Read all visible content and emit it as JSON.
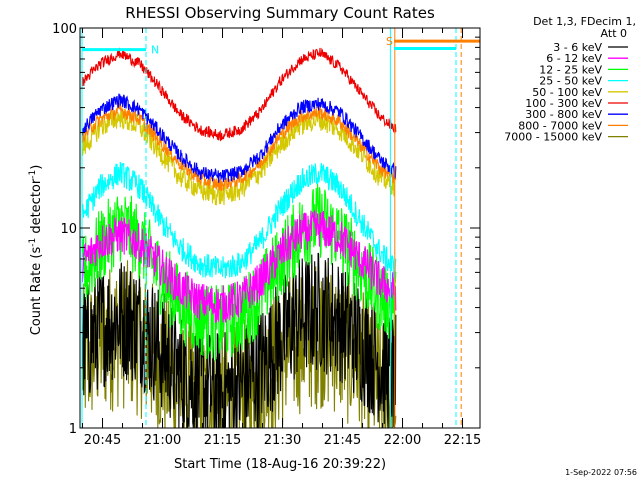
{
  "chart_data": {
    "type": "line",
    "title": "RHESSI Observing Summary Count Rates",
    "xlabel": "Start Time (18-Aug-16 20:39:22)",
    "ylabel_main": "Count Rate (s",
    "ylabel_sup1": "-1",
    "ylabel_mid": " detector",
    "ylabel_sup2": "-1",
    "ylabel_end": ")",
    "y_scale": "log",
    "ylim": [
      1,
      100
    ],
    "xlim_minutes": [
      0,
      100
    ],
    "x_ticks": [
      {
        "minute": 5.63,
        "label": "20:45"
      },
      {
        "minute": 20.63,
        "label": "21:00"
      },
      {
        "minute": 35.63,
        "label": "21:15"
      },
      {
        "minute": 50.63,
        "label": "21:30"
      },
      {
        "minute": 65.63,
        "label": "21:45"
      },
      {
        "minute": 80.63,
        "label": "22:00"
      },
      {
        "minute": 95.63,
        "label": "22:15"
      }
    ],
    "y_ticks": [
      {
        "value": 1,
        "label": "1"
      },
      {
        "value": 10,
        "label": "10"
      },
      {
        "value": 100,
        "label": "100"
      }
    ],
    "legend_header": [
      "Det 1,3, FDecim 1,",
      "Att 0"
    ],
    "legend_position": "right",
    "grid": false,
    "data_end_minute": 79,
    "series": [
      {
        "name": "3 - 6 keV",
        "color": "#000000",
        "x": [
          0,
          5,
          10,
          15,
          20,
          25,
          30,
          35,
          40,
          45,
          50,
          55,
          60,
          65,
          70,
          75,
          79
        ],
        "values": [
          2.4,
          3.2,
          3.6,
          3.3,
          2.5,
          1.9,
          1.6,
          1.5,
          1.6,
          2.0,
          2.8,
          3.6,
          3.9,
          3.5,
          2.7,
          2.1,
          1.8
        ],
        "noise": 0.45
      },
      {
        "name": "6 - 12 keV",
        "color": "#ff00ff",
        "x": [
          0,
          5,
          10,
          15,
          20,
          25,
          30,
          35,
          40,
          45,
          50,
          55,
          60,
          65,
          70,
          75,
          79
        ],
        "values": [
          6.5,
          8.5,
          9.3,
          8.4,
          6.5,
          5.0,
          4.3,
          4.1,
          4.4,
          5.4,
          7.4,
          9.5,
          10.0,
          9.0,
          7.0,
          5.4,
          4.8
        ],
        "noise": 0.14
      },
      {
        "name": "12 - 25 keV",
        "color": "#00ff00",
        "x": [
          0,
          5,
          10,
          15,
          20,
          25,
          30,
          35,
          40,
          45,
          50,
          55,
          60,
          65,
          70,
          75,
          79
        ],
        "values": [
          5.5,
          8.0,
          10.5,
          8.5,
          5.8,
          4.2,
          3.5,
          3.3,
          3.6,
          4.6,
          6.8,
          9.5,
          11.0,
          9.0,
          6.3,
          4.6,
          4.0
        ],
        "noise": 0.28
      },
      {
        "name": "25 - 50 keV",
        "color": "#00ffff",
        "x": [
          0,
          5,
          10,
          15,
          20,
          25,
          30,
          35,
          40,
          45,
          50,
          55,
          60,
          65,
          70,
          75,
          79
        ],
        "values": [
          11,
          16,
          19,
          16,
          11,
          8,
          6.6,
          6.2,
          6.6,
          8.5,
          12.5,
          17,
          19,
          16,
          11,
          7.6,
          6.2
        ],
        "noise": 0.09
      },
      {
        "name": "50 - 100 keV",
        "color": "#d4c800",
        "x": [
          0,
          5,
          10,
          15,
          20,
          25,
          30,
          35,
          40,
          45,
          50,
          55,
          60,
          65,
          70,
          75,
          79
        ],
        "values": [
          24,
          32,
          36,
          32,
          24,
          18,
          15.5,
          14.5,
          15.5,
          19,
          26,
          33,
          35,
          31,
          24,
          18,
          16
        ],
        "noise": 0.08
      },
      {
        "name": "100 - 300 keV",
        "color": "#ee0000",
        "x": [
          0,
          5,
          10,
          15,
          20,
          25,
          30,
          35,
          40,
          45,
          50,
          55,
          60,
          65,
          70,
          75,
          79
        ],
        "values": [
          52,
          66,
          75,
          66,
          50,
          37,
          31,
          29,
          31,
          38,
          54,
          69,
          75,
          64,
          48,
          36,
          31
        ],
        "noise": 0.04
      },
      {
        "name": "300 - 800 keV",
        "color": "#0000ff",
        "x": [
          0,
          5,
          10,
          15,
          20,
          25,
          30,
          35,
          40,
          45,
          50,
          55,
          60,
          65,
          70,
          75,
          79
        ],
        "values": [
          30,
          39,
          44,
          39,
          30,
          23,
          19,
          18,
          19,
          23,
          32,
          40,
          42,
          38,
          29,
          22,
          19
        ],
        "noise": 0.05
      },
      {
        "name": "800 - 7000 keV",
        "color": "#ff8000",
        "x": [
          0,
          5,
          10,
          15,
          20,
          25,
          30,
          35,
          40,
          45,
          50,
          55,
          60,
          65,
          70,
          75,
          79
        ],
        "values": [
          28,
          35,
          39,
          35,
          27,
          21,
          17.5,
          16.5,
          17.5,
          21,
          29,
          36,
          38,
          34,
          26,
          20,
          17.5
        ],
        "noise": 0.05
      },
      {
        "name": "7000 - 15000 keV",
        "color": "#808000",
        "x": [
          0,
          5,
          10,
          15,
          20,
          25,
          30,
          35,
          40,
          45,
          50,
          55,
          60,
          65,
          70,
          75,
          79
        ],
        "values": [
          2.1,
          2.7,
          3.0,
          2.7,
          2.1,
          1.6,
          1.4,
          1.3,
          1.4,
          1.7,
          2.3,
          2.8,
          3.0,
          2.7,
          2.1,
          1.6,
          1.4
        ],
        "noise": 0.55
      }
    ],
    "flags": [
      {
        "label": "N",
        "color": "#00ffff",
        "x_start": 0.5,
        "x_end": 16.5,
        "y_value": 78
      },
      {
        "label": "S",
        "color": "#ff8000",
        "x_start": 78.5,
        "x_end": 100,
        "y_value": 86
      },
      {
        "label": "",
        "color": "#00ffff",
        "x_start": 78.5,
        "x_end": 94,
        "y_value": 79
      }
    ],
    "vlines": [
      {
        "x": 0.5,
        "color": "#00ffff",
        "style": "solid"
      },
      {
        "x": 16.5,
        "color": "#00ffff",
        "style": "dashed"
      },
      {
        "x": 77.6,
        "color": "#00ffff",
        "style": "solid"
      },
      {
        "x": 78.7,
        "color": "#ff8000",
        "style": "solid"
      },
      {
        "x": 94.0,
        "color": "#00ffff",
        "style": "dashed"
      },
      {
        "x": 95.3,
        "color": "#ff8000",
        "style": "dashed"
      }
    ],
    "footer": "1-Sep-2022 07:56"
  }
}
